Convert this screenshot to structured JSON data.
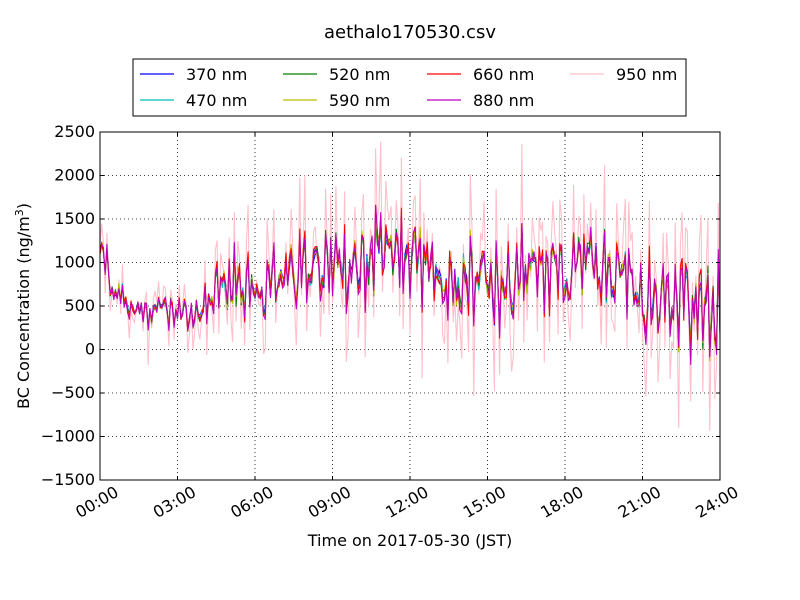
{
  "chart_data": {
    "type": "line",
    "title": "aethalo170530.csv",
    "xlabel": "Time on 2017-05-30 (JST)",
    "ylabel": "BC Concentration (ng/m",
    "ylabel_sup": "3",
    "ylabel_end": ")",
    "xlim": [
      "00:00",
      "24:00"
    ],
    "ylim": [
      -1500,
      2500
    ],
    "x_ticks": [
      "00:00",
      "03:00",
      "06:00",
      "09:00",
      "12:00",
      "15:00",
      "18:00",
      "21:00",
      "24:00"
    ],
    "y_ticks": [
      "2500",
      "2000",
      "1500",
      "1000",
      "500",
      "0",
      "−500",
      "−1000",
      "−1500"
    ],
    "grid": true,
    "legend_position": "top-center",
    "series": [
      {
        "name": "370 nm",
        "color": "#0000ff"
      },
      {
        "name": "470 nm",
        "color": "#00bfbf"
      },
      {
        "name": "520 nm",
        "color": "#008000"
      },
      {
        "name": "590 nm",
        "color": "#bfbf00"
      },
      {
        "name": "660 nm",
        "color": "#ff0000"
      },
      {
        "name": "880 nm",
        "color": "#bf00bf"
      },
      {
        "name": "950 nm",
        "color": "#ffc0cb"
      }
    ],
    "baseline": [
      [
        0.0,
        1000
      ],
      [
        0.2,
        1050
      ],
      [
        0.5,
        700
      ],
      [
        1.0,
        550
      ],
      [
        1.5,
        450
      ],
      [
        2.0,
        420
      ],
      [
        2.5,
        450
      ],
      [
        3.0,
        420
      ],
      [
        3.5,
        420
      ],
      [
        4.0,
        520
      ],
      [
        4.5,
        650
      ],
      [
        5.0,
        760
      ],
      [
        5.5,
        700
      ],
      [
        6.0,
        640
      ],
      [
        6.5,
        680
      ],
      [
        7.0,
        800
      ],
      [
        7.5,
        900
      ],
      [
        8.0,
        960
      ],
      [
        8.5,
        990
      ],
      [
        9.0,
        1000
      ],
      [
        9.5,
        1000
      ],
      [
        10.0,
        980
      ],
      [
        10.5,
        1000
      ],
      [
        11.0,
        1040
      ],
      [
        11.5,
        1060
      ],
      [
        12.0,
        1010
      ],
      [
        12.5,
        960
      ],
      [
        13.0,
        900
      ],
      [
        13.5,
        880
      ],
      [
        14.0,
        900
      ],
      [
        14.5,
        860
      ],
      [
        15.0,
        750
      ],
      [
        15.5,
        720
      ],
      [
        16.0,
        850
      ],
      [
        16.5,
        930
      ],
      [
        17.0,
        900
      ],
      [
        17.5,
        850
      ],
      [
        18.0,
        880
      ],
      [
        18.5,
        1000
      ],
      [
        19.0,
        980
      ],
      [
        19.5,
        900
      ],
      [
        20.0,
        800
      ],
      [
        20.5,
        700
      ],
      [
        21.0,
        650
      ],
      [
        21.5,
        600
      ],
      [
        22.0,
        560
      ],
      [
        22.5,
        520
      ],
      [
        23.0,
        480
      ],
      [
        23.5,
        460
      ],
      [
        24.0,
        460
      ]
    ],
    "swing": [
      [
        0.0,
        180
      ],
      [
        1.0,
        260
      ],
      [
        2.0,
        220
      ],
      [
        3.0,
        160
      ],
      [
        4.0,
        240
      ],
      [
        5.0,
        420
      ],
      [
        5.3,
        560
      ],
      [
        6.0,
        300
      ],
      [
        7.0,
        420
      ],
      [
        8.0,
        480
      ],
      [
        9.0,
        480
      ],
      [
        10.0,
        460
      ],
      [
        11.0,
        520
      ],
      [
        12.0,
        500
      ],
      [
        13.0,
        480
      ],
      [
        14.0,
        520
      ],
      [
        15.0,
        540
      ],
      [
        16.0,
        500
      ],
      [
        17.0,
        440
      ],
      [
        18.0,
        360
      ],
      [
        19.0,
        420
      ],
      [
        20.0,
        460
      ],
      [
        21.0,
        480
      ],
      [
        22.0,
        500
      ],
      [
        23.0,
        560
      ],
      [
        24.0,
        600
      ]
    ],
    "pink_scale": 2.3
  }
}
